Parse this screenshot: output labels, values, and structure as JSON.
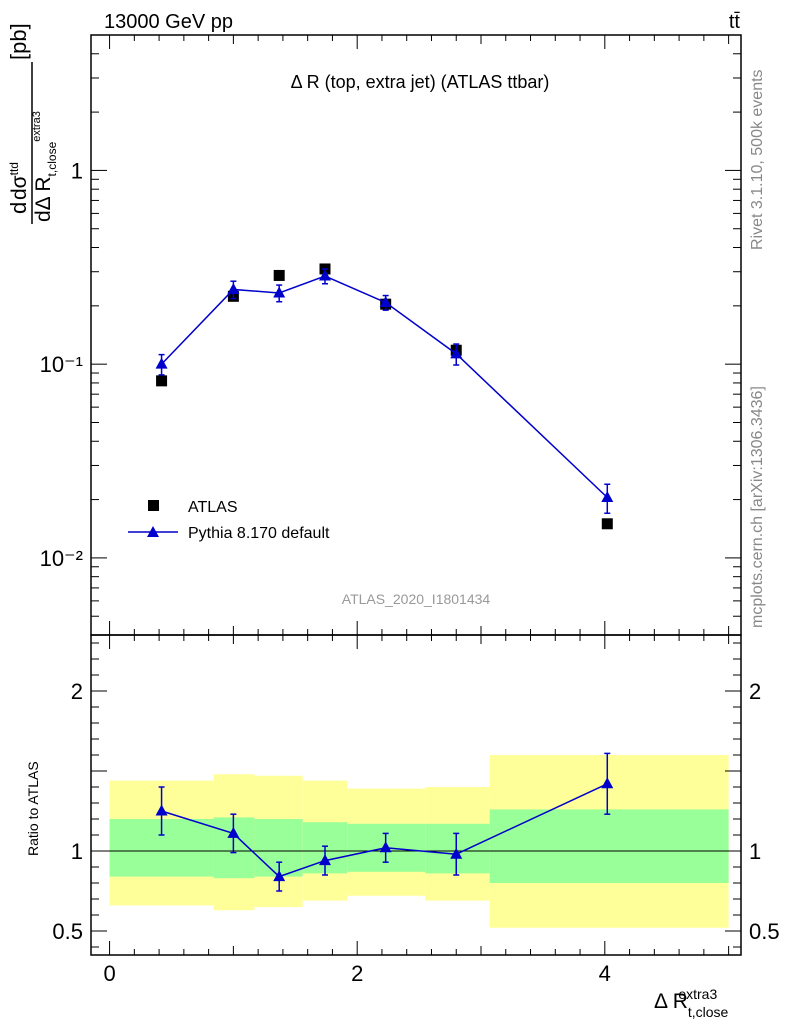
{
  "header": {
    "energy_label": "13000 GeV pp",
    "process_label": "tt̄",
    "side_rivet": "Rivet 3.1.10,  500k events",
    "side_mcplots": "mcplots.cern.ch [arXiv:1306.3436]",
    "analysis_id": "ATLAS_2020_I1801434"
  },
  "chart_data": [
    {
      "type": "scatter",
      "panel": "main",
      "title": "Δ R (top, extra jet) (ATLAS ttbar)",
      "ylabel_tex": "dσ^{ttd}/dΔ R_{t,close}^{extra3} [pb]",
      "yscale": "log",
      "ylim": [
        0.004,
        5
      ],
      "xlim": [
        -0.15,
        5.1
      ],
      "y_ticks": [
        {
          "value": 1,
          "label": "1"
        },
        {
          "value": 0.1,
          "label": "10⁻¹"
        },
        {
          "value": 0.01,
          "label": "10⁻²"
        }
      ],
      "legend_position": "bottom-left",
      "series": [
        {
          "name": "ATLAS",
          "color": "#000000",
          "marker": "square",
          "x": [
            0.42,
            1.0,
            1.37,
            1.74,
            2.23,
            2.8,
            4.02
          ],
          "y": [
            0.082,
            0.224,
            0.287,
            0.31,
            0.204,
            0.118,
            0.015
          ]
        },
        {
          "name": "Pythia 8.170 default",
          "color": "#0000cc",
          "marker": "triangle",
          "line": true,
          "x": [
            0.42,
            1.0,
            1.37,
            1.74,
            2.23,
            2.8,
            4.02
          ],
          "y": [
            0.1,
            0.243,
            0.233,
            0.285,
            0.208,
            0.113,
            0.0205
          ],
          "yerr": [
            0.012,
            0.025,
            0.023,
            0.025,
            0.018,
            0.014,
            0.0035
          ]
        }
      ]
    },
    {
      "type": "scatter",
      "panel": "ratio",
      "ylabel": "Ratio to ATLAS",
      "xlabel_tex": "Δ R_{t,close}^{extra3}",
      "ylim": [
        0.35,
        2.35
      ],
      "xlim": [
        -0.15,
        5.1
      ],
      "x_ticks": [
        0,
        2,
        4
      ],
      "y_ticks": [
        {
          "value": 2,
          "label": "2"
        },
        {
          "value": 1,
          "label": "1"
        },
        {
          "value": 0.5,
          "label": "0.5"
        }
      ],
      "reference_line": 1,
      "bands": [
        {
          "x0": 0.0,
          "x1": 0.84,
          "inner": [
            0.84,
            1.2
          ],
          "outer": [
            0.66,
            1.44
          ]
        },
        {
          "x0": 0.84,
          "x1": 1.17,
          "inner": [
            0.83,
            1.21
          ],
          "outer": [
            0.63,
            1.48
          ]
        },
        {
          "x0": 1.17,
          "x1": 1.56,
          "inner": [
            0.84,
            1.2
          ],
          "outer": [
            0.65,
            1.47
          ]
        },
        {
          "x0": 1.56,
          "x1": 1.92,
          "inner": [
            0.86,
            1.18
          ],
          "outer": [
            0.69,
            1.44
          ]
        },
        {
          "x0": 1.92,
          "x1": 2.55,
          "inner": [
            0.87,
            1.17
          ],
          "outer": [
            0.72,
            1.39
          ]
        },
        {
          "x0": 2.55,
          "x1": 3.07,
          "inner": [
            0.86,
            1.17
          ],
          "outer": [
            0.69,
            1.4
          ]
        },
        {
          "x0": 3.07,
          "x1": 5.0,
          "inner": [
            0.8,
            1.26
          ],
          "outer": [
            0.52,
            1.6
          ]
        }
      ],
      "band_colors": {
        "inner": "#99ff99",
        "outer": "#ffff99"
      },
      "series": [
        {
          "name": "Pythia 8.170 default",
          "color": "#0000cc",
          "marker": "triangle",
          "line": true,
          "x": [
            0.42,
            1.0,
            1.37,
            1.74,
            2.23,
            2.8,
            4.02
          ],
          "y": [
            1.25,
            1.11,
            0.84,
            0.94,
            1.02,
            0.98,
            1.42
          ],
          "yerr": [
            0.15,
            0.12,
            0.09,
            0.09,
            0.09,
            0.13,
            0.19
          ]
        }
      ]
    }
  ]
}
